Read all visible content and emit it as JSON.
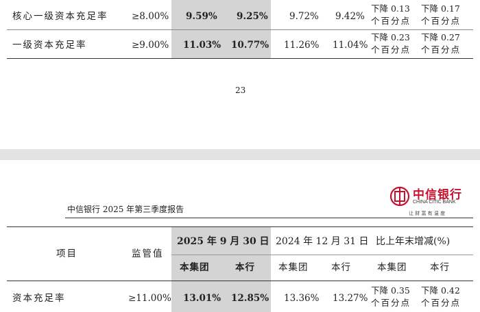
{
  "page1": {
    "rows": [
      {
        "label": "核心一级资本充足率",
        "reg": "≥8.00%",
        "v1": "9.59%",
        "v2": "9.25%",
        "v3": "9.72%",
        "v4": "9.42%",
        "c1a": "下降 0.13",
        "c1b": "个百分点",
        "c2a": "下降 0.17",
        "c2b": "个百分点"
      },
      {
        "label": "一级资本充足率",
        "reg": "≥9.00%",
        "v1": "11.03%",
        "v2": "10.77%",
        "v3": "11.26%",
        "v4": "11.04%",
        "c1a": "下降 0.23",
        "c1b": "个百分点",
        "c2a": "下降 0.27",
        "c2b": "个百分点"
      }
    ],
    "page_number": "23"
  },
  "page2": {
    "report_title": "中信银行 2025 年第三季度报告",
    "logo": {
      "name_cn": "中信银行",
      "name_en": "CHINA CITIC BANK",
      "slogan": "让 财 富 有 温 度",
      "color": "#c8102e"
    },
    "header": {
      "item": "项目",
      "reg": "监管值",
      "date1": "2025 年 9 月 30 日",
      "date2": "2024 年 12 月 31 日",
      "change": "比上年末增减(%)",
      "sub1": "本集团",
      "sub2": "本行",
      "sub3": "本集团",
      "sub4": "本行",
      "sub5": "本集团",
      "sub6": "本行"
    },
    "rows": [
      {
        "label": "资本充足率",
        "reg": "≥11.00%",
        "v1": "13.01%",
        "v2": "12.85%",
        "v3": "13.36%",
        "v4": "13.27%",
        "c1a": "下降 0.35",
        "c1b": "个百分点",
        "c2a": "下降 0.42",
        "c2b": "个百分点"
      }
    ]
  }
}
